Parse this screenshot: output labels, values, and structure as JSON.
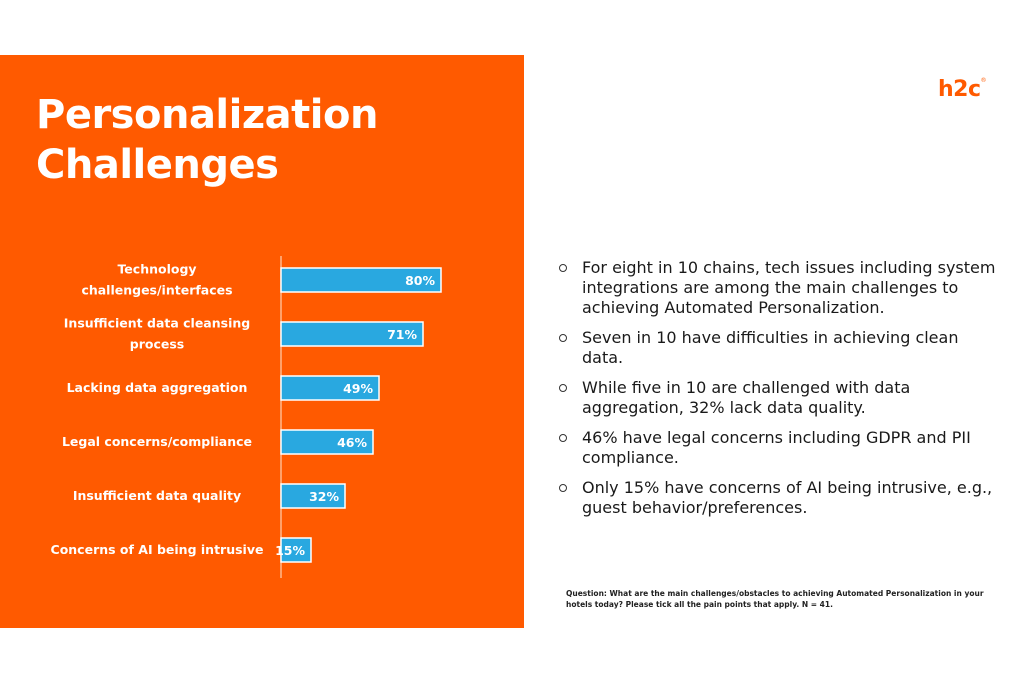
{
  "slide": {
    "title_line1": "Personalization",
    "title_line2": "Challenges",
    "logo": "h2c",
    "logo_mark": "®"
  },
  "colors": {
    "accent": "#ff5a00",
    "bar": "#29a8e0"
  },
  "chart_data": {
    "type": "bar",
    "orientation": "horizontal",
    "categories": [
      [
        "Technology",
        "challenges/interfaces"
      ],
      [
        "Insufficient data cleansing",
        "process"
      ],
      [
        "Lacking data aggregation"
      ],
      [
        "Legal concerns/compliance"
      ],
      [
        "Insufficient data quality"
      ],
      [
        "Concerns of AI being intrusive"
      ]
    ],
    "values": [
      80,
      71,
      49,
      46,
      32,
      15
    ],
    "value_labels": [
      "80%",
      "71%",
      "49%",
      "46%",
      "32%",
      "15%"
    ],
    "xlim": [
      0,
      100
    ],
    "title": "",
    "xlabel": "",
    "ylabel": ""
  },
  "bullets": [
    "For eight in 10 chains, tech issues including system integrations are among the main challenges to achieving Automated Personalization.",
    "Seven in 10 have difficulties in achieving clean data.",
    "While five in 10 are challenged with data aggregation, 32% lack data quality.",
    "46% have legal concerns including GDPR and PII compliance.",
    "Only 15% have concerns of AI being intrusive, e.g., guest behavior/preferences."
  ],
  "footnote": "Question: What are the main challenges/obstacles to achieving Automated Personalization in your hotels today? Please tick all the pain points that apply.  N = 41."
}
